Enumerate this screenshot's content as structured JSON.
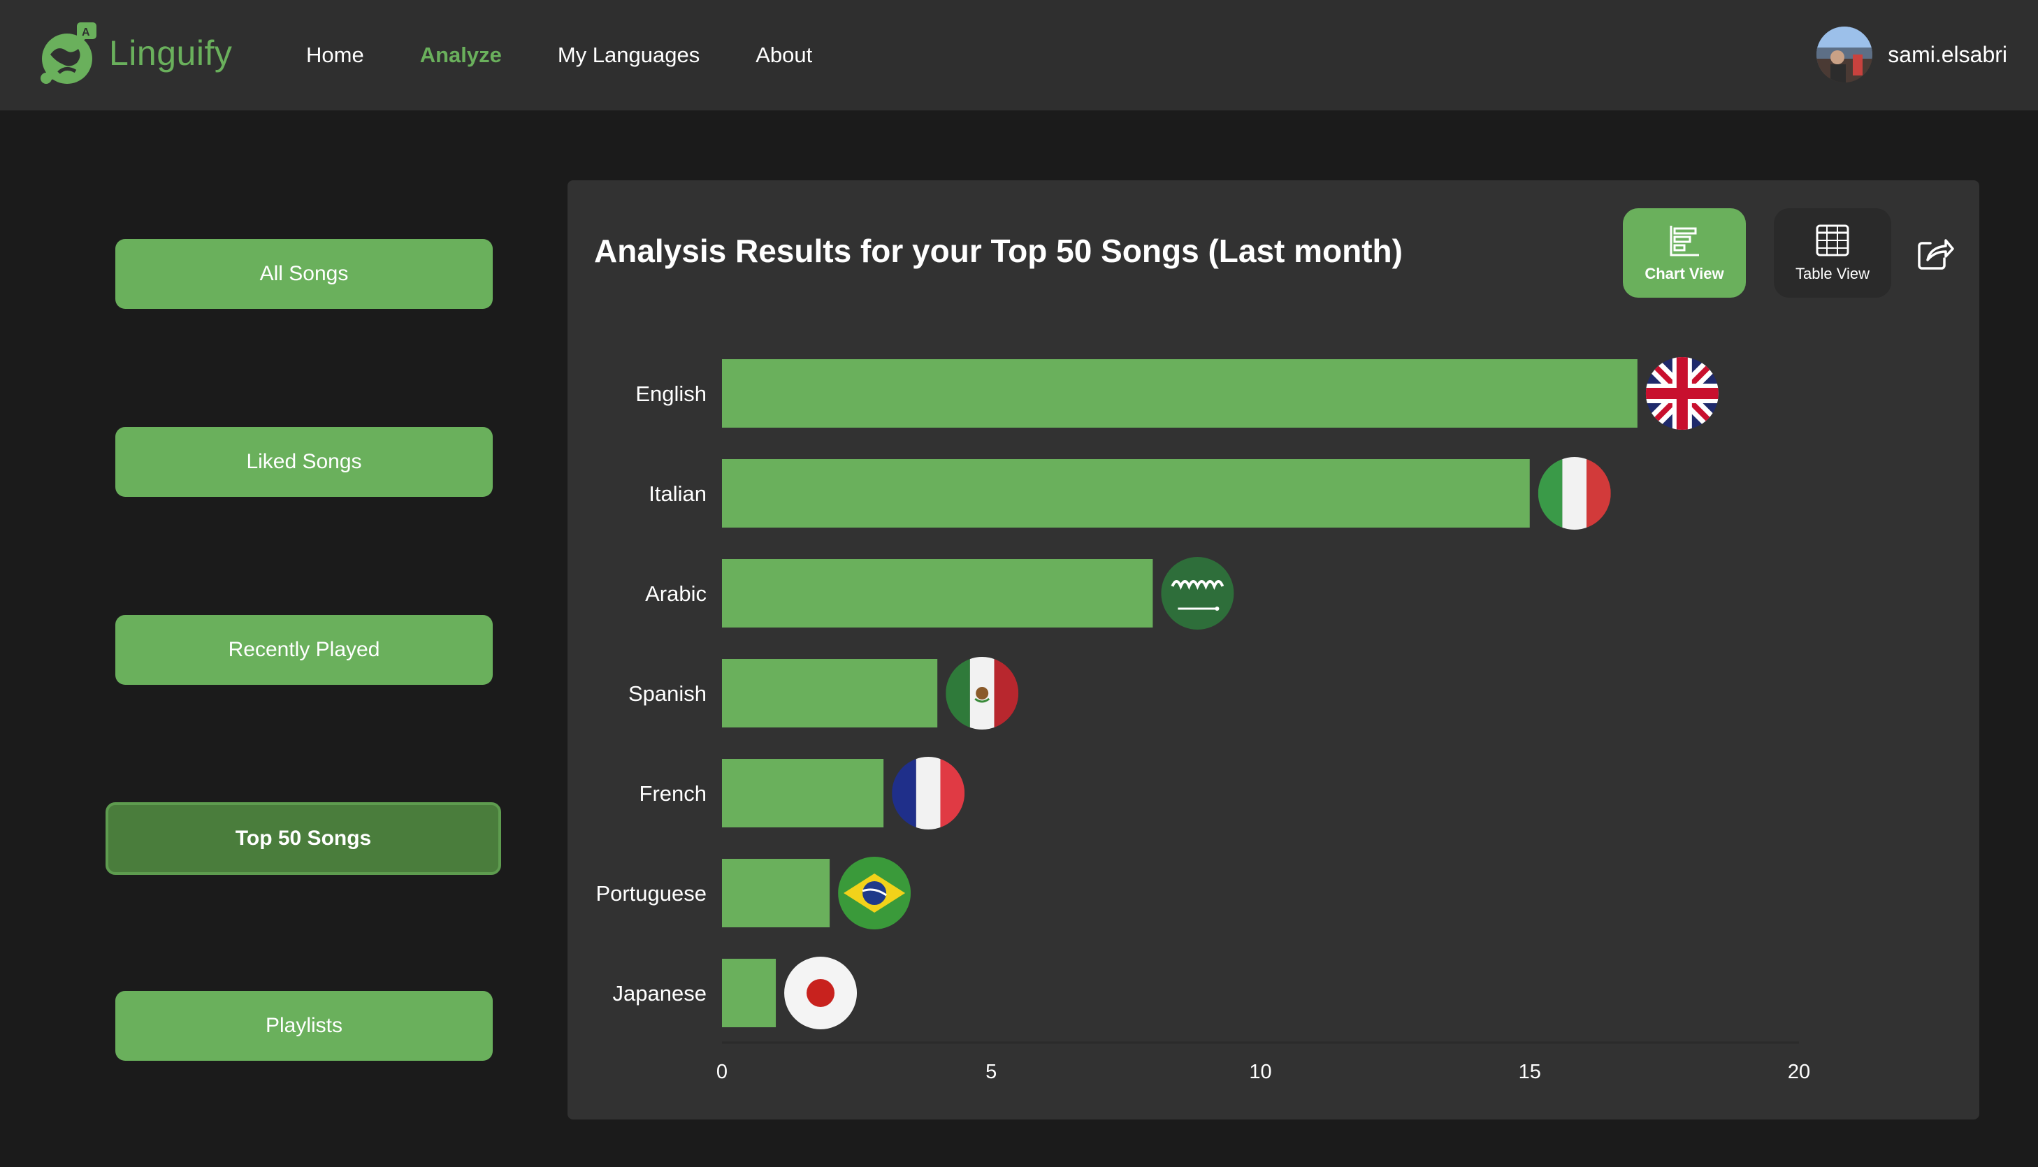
{
  "app": {
    "brand": "Linguify",
    "nav": [
      {
        "label": "Home",
        "active": false
      },
      {
        "label": "Analyze",
        "active": true
      },
      {
        "label": "My Languages",
        "active": false
      },
      {
        "label": "About",
        "active": false
      }
    ],
    "user": {
      "name": "sami.elsabri"
    }
  },
  "sidebar": {
    "items": [
      {
        "label": "All Songs",
        "active": false
      },
      {
        "label": "Liked Songs",
        "active": false
      },
      {
        "label": "Recently Played",
        "active": false
      },
      {
        "label": "Top 50 Songs",
        "active": true
      },
      {
        "label": "Playlists",
        "active": false
      }
    ]
  },
  "panel": {
    "title": "Analysis Results for your Top 50 Songs (Last month)",
    "chart_view_label": "Chart View",
    "table_view_label": "Table View",
    "share_icon": "share-icon"
  },
  "colors": {
    "accent": "#6ab05c",
    "accent_dark": "#4a7d3c",
    "panel": "#323232",
    "background": "#1b1b1b",
    "navbar": "#2f2f2f"
  },
  "chart_data": {
    "type": "bar",
    "orientation": "horizontal",
    "categories": [
      "English",
      "Italian",
      "Arabic",
      "Spanish",
      "French",
      "Portuguese",
      "Japanese"
    ],
    "values": [
      17,
      15,
      8,
      4,
      3,
      2,
      1
    ],
    "flags": [
      "uk-flag-icon",
      "italy-flag-icon",
      "saudi-arabia-flag-icon",
      "mexico-flag-icon",
      "france-flag-icon",
      "brazil-flag-icon",
      "japan-flag-icon"
    ],
    "xlim": [
      0,
      20
    ],
    "xticks": [
      0,
      5,
      10,
      15,
      20
    ],
    "bar_color": "#6ab05c",
    "grid": false
  }
}
